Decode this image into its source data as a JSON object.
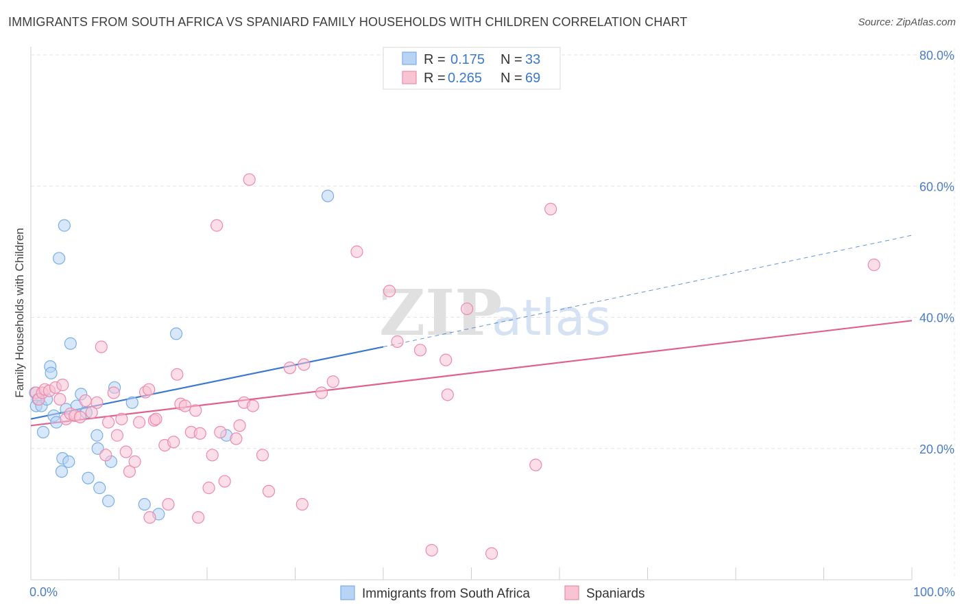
{
  "header": {
    "title": "IMMIGRANTS FROM SOUTH AFRICA VS SPANIARD FAMILY HOUSEHOLDS WITH CHILDREN CORRELATION CHART",
    "source": "Source: ZipAtlas.com"
  },
  "watermark": {
    "part1": "ZIP",
    "part2": "atlas"
  },
  "legend": {
    "rows": [
      {
        "r_label": "R =",
        "r_value": "0.175",
        "n_label": "N =",
        "n_value": "33",
        "color": "#7aaee8",
        "fill": "#b8d3f4"
      },
      {
        "r_label": "R =",
        "r_value": "0.265",
        "n_label": "N =",
        "n_value": "69",
        "color": "#ee8aab",
        "fill": "#f8c3d3"
      }
    ]
  },
  "chart_data": {
    "type": "scatter",
    "title": "IMMIGRANTS FROM SOUTH AFRICA VS SPANIARD FAMILY HOUSEHOLDS WITH CHILDREN CORRELATION CHART",
    "xlabel": "",
    "ylabel": "Family Households with Children",
    "xlim": [
      0,
      100
    ],
    "ylim": [
      0,
      80
    ],
    "x_tick_labels": [
      "0.0%",
      "100.0%"
    ],
    "y_ticks": [
      20,
      40,
      60,
      80
    ],
    "y_tick_labels": [
      "20.0%",
      "40.0%",
      "60.0%",
      "80.0%"
    ],
    "grid": true,
    "series": [
      {
        "name": "Immigrants from South Africa",
        "color": "#3b78d0",
        "marker_fill": "#b8d3f4",
        "marker_stroke": "#7aaee8",
        "trend": {
          "x0": 0,
          "y0": 24.5,
          "x1": 40,
          "y1": 35.5,
          "dashed_to_x": 100,
          "dashed_to_y": 52.5
        },
        "points": [
          [
            0.5,
            28.5
          ],
          [
            0.8,
            27.5
          ],
          [
            0.6,
            26.5
          ],
          [
            1.2,
            26.5
          ],
          [
            1.4,
            22.5
          ],
          [
            1.8,
            27.5
          ],
          [
            2.2,
            32.5
          ],
          [
            2.3,
            31.5
          ],
          [
            2.6,
            25.0
          ],
          [
            2.9,
            24.0
          ],
          [
            3.2,
            49.0
          ],
          [
            3.8,
            54.0
          ],
          [
            3.6,
            18.5
          ],
          [
            3.5,
            16.5
          ],
          [
            4.3,
            18.0
          ],
          [
            4.5,
            36.0
          ],
          [
            5.2,
            26.5
          ],
          [
            5.7,
            28.3
          ],
          [
            6.3,
            25.5
          ],
          [
            6.5,
            15.5
          ],
          [
            7.5,
            22.0
          ],
          [
            7.6,
            20.0
          ],
          [
            7.8,
            14.0
          ],
          [
            8.8,
            12.0
          ],
          [
            9.1,
            18.0
          ],
          [
            9.5,
            29.3
          ],
          [
            11.5,
            27.0
          ],
          [
            12.9,
            11.5
          ],
          [
            14.5,
            10.0
          ],
          [
            16.5,
            37.5
          ],
          [
            22.2,
            22.0
          ],
          [
            33.7,
            58.5
          ],
          [
            4.0,
            26.0
          ]
        ]
      },
      {
        "name": "Spaniards",
        "color": "#e0608e",
        "marker_fill": "#f8c3d3",
        "marker_stroke": "#ee8aab",
        "trend": {
          "x0": 0,
          "y0": 23.5,
          "x1": 100,
          "y1": 39.5
        },
        "points": [
          [
            0.6,
            28.5
          ],
          [
            0.9,
            27.5
          ],
          [
            1.3,
            28.5
          ],
          [
            1.6,
            29.0
          ],
          [
            2.1,
            28.8
          ],
          [
            2.8,
            29.3
          ],
          [
            3.3,
            27.5
          ],
          [
            3.6,
            29.7
          ],
          [
            4.0,
            24.5
          ],
          [
            4.5,
            25.3
          ],
          [
            5.0,
            25.0
          ],
          [
            5.6,
            24.8
          ],
          [
            6.2,
            27.3
          ],
          [
            6.9,
            25.5
          ],
          [
            7.5,
            27.0
          ],
          [
            8.0,
            35.5
          ],
          [
            8.5,
            19.0
          ],
          [
            8.8,
            24.0
          ],
          [
            9.4,
            28.5
          ],
          [
            9.8,
            22.0
          ],
          [
            10.3,
            24.5
          ],
          [
            10.8,
            19.5
          ],
          [
            11.2,
            16.5
          ],
          [
            11.8,
            18.0
          ],
          [
            12.3,
            24.0
          ],
          [
            13.0,
            28.6
          ],
          [
            13.4,
            29.0
          ],
          [
            14.0,
            24.3
          ],
          [
            14.2,
            24.5
          ],
          [
            15.2,
            20.5
          ],
          [
            15.6,
            11.5
          ],
          [
            16.2,
            21.0
          ],
          [
            16.6,
            31.3
          ],
          [
            17.0,
            26.8
          ],
          [
            17.5,
            26.5
          ],
          [
            18.2,
            22.5
          ],
          [
            18.7,
            25.8
          ],
          [
            19.2,
            22.3
          ],
          [
            19.0,
            9.5
          ],
          [
            20.2,
            14.0
          ],
          [
            20.6,
            19.0
          ],
          [
            21.1,
            54.0
          ],
          [
            21.5,
            22.5
          ],
          [
            22.0,
            15.0
          ],
          [
            23.3,
            21.5
          ],
          [
            23.7,
            23.5
          ],
          [
            24.2,
            27.0
          ],
          [
            25.2,
            26.5
          ],
          [
            24.8,
            61.0
          ],
          [
            26.3,
            19.0
          ],
          [
            27.0,
            13.5
          ],
          [
            29.4,
            32.3
          ],
          [
            30.8,
            11.5
          ],
          [
            31.0,
            32.8
          ],
          [
            33.0,
            28.5
          ],
          [
            34.3,
            30.2
          ],
          [
            37.0,
            50.0
          ],
          [
            40.7,
            44.0
          ],
          [
            41.6,
            36.3
          ],
          [
            44.2,
            35.0
          ],
          [
            45.5,
            4.5
          ],
          [
            47.1,
            33.5
          ],
          [
            47.3,
            28.2
          ],
          [
            49.5,
            41.3
          ],
          [
            52.3,
            4.0
          ],
          [
            57.3,
            17.5
          ],
          [
            59.0,
            56.5
          ],
          [
            95.7,
            48.0
          ],
          [
            13.5,
            9.5
          ]
        ]
      }
    ]
  },
  "bottom_legend": {
    "items": [
      {
        "label": "Immigrants from South Africa",
        "fill": "#b8d3f4",
        "stroke": "#7aaee8"
      },
      {
        "label": "Spaniards",
        "fill": "#f8c3d3",
        "stroke": "#ee8aab"
      }
    ]
  }
}
